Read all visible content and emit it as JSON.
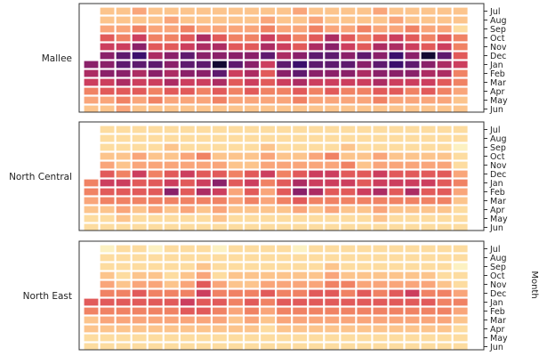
{
  "chart_data": {
    "type": "heatmap",
    "title": "",
    "ylabel": "Month",
    "xlabel": "",
    "months": [
      "Jul",
      "Aug",
      "Sep",
      "Oct",
      "Nov",
      "Dec",
      "Jan",
      "Feb",
      "Mar",
      "Apr",
      "May",
      "Jun"
    ],
    "colormap": "magma (light = low, dark = high)",
    "colors": [
      "#fcf1c2",
      "#fddca0",
      "#fcc48c",
      "#f9a57a",
      "#f08264",
      "#e15a5a",
      "#cc3e5e",
      "#ac2c63",
      "#8a2069",
      "#5e1a6e",
      "#3b0f6c",
      "#120a32"
    ],
    "value_range": [
      0,
      11
    ],
    "panels": [
      {
        "region": "Mallee",
        "season_start_missing": true,
        "season_end_missing": true,
        "values_by_month_rows": [
          [
            2,
            2,
            3,
            2,
            2,
            2,
            2,
            2,
            2,
            2,
            2,
            2,
            3,
            2,
            2,
            2,
            2,
            3,
            2,
            2,
            2,
            2,
            2
          ],
          [
            2,
            2,
            2,
            2,
            3,
            2,
            2,
            2,
            2,
            2,
            3,
            2,
            2,
            3,
            2,
            2,
            2,
            2,
            3,
            2,
            2,
            2,
            2
          ],
          [
            3,
            3,
            4,
            3,
            3,
            4,
            3,
            3,
            3,
            3,
            4,
            3,
            3,
            4,
            3,
            3,
            4,
            3,
            3,
            4,
            3,
            3,
            1
          ],
          [
            5,
            4,
            6,
            4,
            4,
            5,
            7,
            5,
            4,
            4,
            6,
            5,
            4,
            5,
            7,
            5,
            4,
            5,
            6,
            5,
            4,
            5,
            4
          ],
          [
            6,
            6,
            8,
            5,
            5,
            6,
            7,
            7,
            5,
            5,
            7,
            6,
            5,
            7,
            8,
            6,
            5,
            7,
            7,
            6,
            5,
            6,
            4
          ],
          [
            8,
            9,
            10,
            7,
            8,
            9,
            8,
            8,
            8,
            8,
            9,
            7,
            8,
            9,
            9,
            8,
            9,
            8,
            10,
            8,
            11,
            9,
            5
          ],
          [
            8,
            8,
            9,
            9,
            9,
            8,
            9,
            9,
            11,
            9,
            8,
            6,
            9,
            10,
            9,
            9,
            9,
            8,
            9,
            10,
            9,
            8,
            7,
            6
          ],
          [
            7,
            8,
            8,
            7,
            8,
            7,
            8,
            8,
            9,
            6,
            7,
            5,
            8,
            9,
            8,
            8,
            8,
            7,
            8,
            8,
            8,
            7,
            7,
            4
          ],
          [
            6,
            6,
            7,
            6,
            6,
            7,
            6,
            6,
            7,
            5,
            6,
            5,
            6,
            7,
            6,
            6,
            6,
            6,
            7,
            6,
            6,
            6,
            5,
            4
          ],
          [
            4,
            5,
            5,
            5,
            4,
            5,
            5,
            4,
            5,
            4,
            5,
            4,
            4,
            5,
            4,
            5,
            4,
            4,
            5,
            5,
            4,
            5,
            4,
            3
          ],
          [
            3,
            3,
            4,
            3,
            4,
            3,
            3,
            3,
            4,
            3,
            3,
            3,
            3,
            4,
            3,
            3,
            3,
            3,
            4,
            3,
            3,
            3,
            3,
            2
          ],
          [
            2,
            2,
            3,
            2,
            2,
            2,
            2,
            2,
            2,
            2,
            2,
            2,
            2,
            2,
            2,
            2,
            2,
            2,
            2,
            2,
            2,
            2,
            2,
            2
          ]
        ]
      },
      {
        "region": "North Central",
        "season_start_missing": true,
        "season_end_missing": true,
        "values_by_month_rows": [
          [
            1,
            1,
            1,
            1,
            1,
            1,
            1,
            1,
            1,
            1,
            1,
            1,
            1,
            1,
            1,
            1,
            1,
            1,
            1,
            1,
            1,
            1,
            1
          ],
          [
            1,
            1,
            1,
            1,
            1,
            1,
            1,
            1,
            1,
            1,
            1,
            1,
            1,
            1,
            1,
            1,
            1,
            1,
            1,
            1,
            1,
            1,
            1
          ],
          [
            1,
            1,
            1,
            1,
            2,
            1,
            1,
            1,
            1,
            1,
            2,
            1,
            1,
            1,
            1,
            2,
            1,
            1,
            1,
            1,
            1,
            1,
            0
          ],
          [
            2,
            2,
            3,
            2,
            2,
            3,
            4,
            2,
            2,
            2,
            3,
            2,
            2,
            3,
            4,
            2,
            2,
            3,
            2,
            2,
            2,
            2,
            1
          ],
          [
            3,
            2,
            3,
            3,
            3,
            3,
            3,
            3,
            2,
            2,
            3,
            3,
            3,
            3,
            3,
            4,
            2,
            3,
            3,
            3,
            3,
            3,
            1
          ],
          [
            5,
            4,
            6,
            4,
            5,
            6,
            5,
            5,
            4,
            5,
            6,
            4,
            5,
            6,
            6,
            5,
            5,
            6,
            5,
            5,
            5,
            5,
            3
          ],
          [
            4,
            6,
            6,
            5,
            5,
            6,
            5,
            6,
            8,
            5,
            6,
            4,
            5,
            7,
            6,
            6,
            6,
            5,
            6,
            6,
            6,
            6,
            5,
            4
          ],
          [
            4,
            5,
            5,
            5,
            5,
            8,
            5,
            7,
            6,
            3,
            5,
            3,
            5,
            8,
            7,
            5,
            5,
            6,
            7,
            5,
            7,
            5,
            5,
            3
          ],
          [
            3,
            4,
            4,
            4,
            4,
            4,
            4,
            4,
            4,
            3,
            4,
            3,
            4,
            5,
            4,
            4,
            4,
            4,
            4,
            4,
            4,
            4,
            4,
            2
          ],
          [
            2,
            2,
            3,
            2,
            3,
            2,
            3,
            2,
            3,
            2,
            2,
            2,
            2,
            3,
            2,
            3,
            2,
            2,
            3,
            2,
            2,
            2,
            2,
            1
          ],
          [
            1,
            1,
            2,
            1,
            1,
            1,
            1,
            1,
            2,
            1,
            1,
            1,
            1,
            1,
            1,
            1,
            1,
            1,
            2,
            1,
            1,
            1,
            1,
            1
          ],
          [
            1,
            1,
            1,
            1,
            1,
            1,
            1,
            1,
            1,
            1,
            1,
            1,
            1,
            1,
            1,
            1,
            1,
            1,
            1,
            1,
            1,
            1,
            1,
            1
          ]
        ]
      },
      {
        "region": "North East",
        "season_start_missing": true,
        "season_end_missing": true,
        "values_by_month_rows": [
          [
            0,
            1,
            1,
            0,
            1,
            1,
            1,
            0,
            1,
            1,
            1,
            1,
            0,
            1,
            1,
            1,
            1,
            1,
            1,
            1,
            1,
            1,
            1
          ],
          [
            1,
            1,
            1,
            1,
            1,
            1,
            1,
            1,
            1,
            1,
            1,
            1,
            1,
            1,
            1,
            1,
            1,
            1,
            1,
            1,
            1,
            1,
            1
          ],
          [
            1,
            1,
            1,
            1,
            1,
            1,
            2,
            1,
            1,
            1,
            1,
            1,
            1,
            1,
            2,
            1,
            1,
            1,
            1,
            1,
            1,
            1,
            0
          ],
          [
            2,
            1,
            2,
            2,
            1,
            2,
            3,
            1,
            2,
            2,
            2,
            2,
            2,
            2,
            3,
            2,
            2,
            2,
            2,
            2,
            2,
            1,
            1
          ],
          [
            3,
            2,
            3,
            3,
            2,
            3,
            5,
            3,
            2,
            2,
            3,
            3,
            3,
            3,
            4,
            4,
            3,
            3,
            3,
            3,
            3,
            2,
            1
          ],
          [
            4,
            4,
            5,
            4,
            4,
            4,
            6,
            4,
            4,
            4,
            5,
            4,
            4,
            5,
            5,
            4,
            5,
            4,
            5,
            6,
            4,
            4,
            3
          ],
          [
            5,
            5,
            5,
            5,
            5,
            5,
            6,
            5,
            5,
            4,
            5,
            4,
            5,
            5,
            5,
            5,
            5,
            5,
            5,
            5,
            5,
            5,
            4,
            4
          ],
          [
            4,
            4,
            4,
            4,
            4,
            4,
            5,
            5,
            4,
            3,
            4,
            3,
            4,
            4,
            4,
            4,
            4,
            4,
            4,
            4,
            4,
            4,
            4,
            3
          ],
          [
            2,
            3,
            3,
            3,
            3,
            3,
            3,
            3,
            3,
            2,
            3,
            2,
            3,
            3,
            3,
            3,
            3,
            3,
            3,
            3,
            3,
            3,
            3,
            2
          ],
          [
            2,
            2,
            2,
            2,
            2,
            2,
            2,
            2,
            2,
            2,
            2,
            1,
            2,
            2,
            2,
            2,
            2,
            2,
            2,
            2,
            2,
            2,
            2,
            1
          ],
          [
            1,
            1,
            1,
            1,
            1,
            1,
            1,
            1,
            1,
            1,
            1,
            1,
            1,
            1,
            1,
            1,
            1,
            1,
            1,
            1,
            1,
            1,
            1,
            1
          ],
          [
            1,
            1,
            1,
            1,
            1,
            1,
            1,
            1,
            1,
            1,
            1,
            1,
            1,
            1,
            1,
            1,
            1,
            1,
            1,
            1,
            1,
            1,
            1,
            1
          ]
        ]
      }
    ]
  }
}
